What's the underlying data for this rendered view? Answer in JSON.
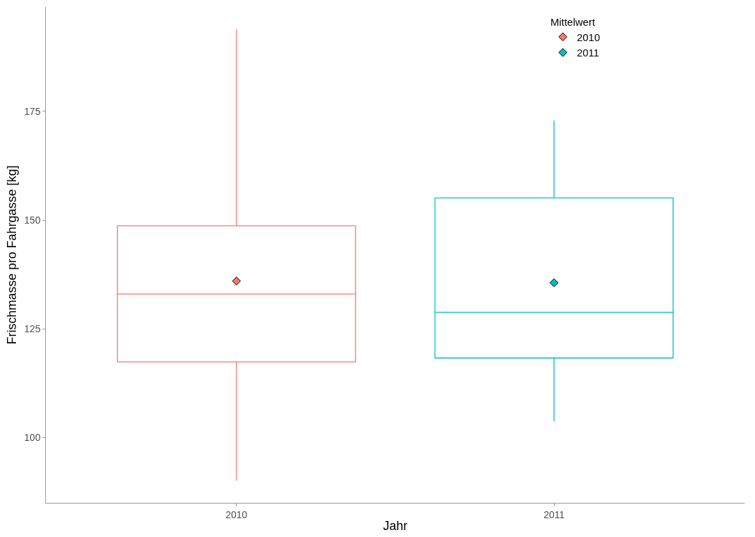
{
  "chart_data": {
    "type": "box",
    "xlabel": "Jahr",
    "ylabel": "Frischmasse pro Fahrgasse [kg]",
    "legend_title": "Mittelwert",
    "categories": [
      "2010",
      "2011"
    ],
    "series": [
      {
        "name": "2010",
        "color": "#f8766d",
        "boxes": [
          {
            "low": 90.1,
            "q1": 117.4,
            "median": 133.0,
            "q3": 148.7,
            "high": 193.9,
            "mean": 136.0
          },
          null
        ]
      },
      {
        "name": "2011",
        "color": "#00bfc4",
        "boxes": [
          null,
          {
            "low": 103.7,
            "q1": 118.3,
            "median": 128.8,
            "q3": 155.1,
            "high": 172.9,
            "mean": 135.6
          }
        ]
      }
    ],
    "ylim": [
      85,
      199
    ],
    "yticks": [
      100,
      125,
      150,
      175
    ],
    "legend": "top right",
    "marker": "diamond"
  }
}
